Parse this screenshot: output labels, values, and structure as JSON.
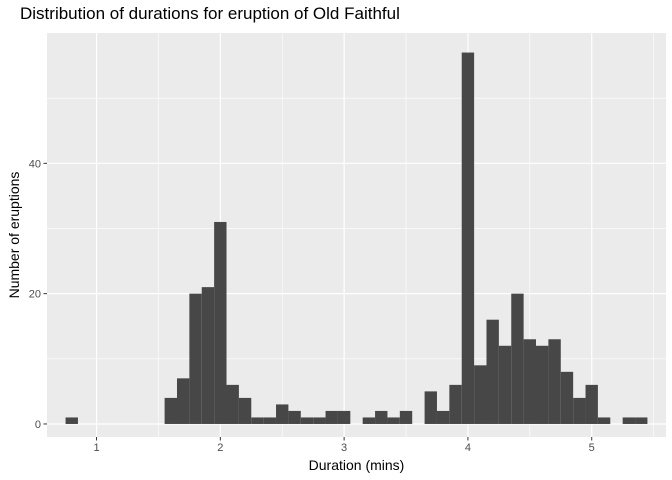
{
  "chart_data": {
    "type": "bar",
    "title": "Distribution of durations for eruption of Old Faithful",
    "xlabel": "Duration (mins)",
    "ylabel": "Number of eruptions",
    "xlim": [
      0.6,
      5.6
    ],
    "ylim": [
      -2,
      60
    ],
    "x_ticks": [
      1,
      2,
      3,
      4,
      5
    ],
    "y_ticks": [
      0,
      20,
      40
    ],
    "bin_width": 0.1,
    "bin_starts": [
      0.75,
      0.85,
      0.95,
      1.05,
      1.15,
      1.25,
      1.35,
      1.45,
      1.55,
      1.65,
      1.75,
      1.85,
      1.95,
      2.05,
      2.15,
      2.25,
      2.35,
      2.45,
      2.55,
      2.65,
      2.75,
      2.85,
      2.95,
      3.05,
      3.15,
      3.25,
      3.35,
      3.45,
      3.55,
      3.65,
      3.75,
      3.85,
      3.95,
      4.05,
      4.15,
      4.25,
      4.35,
      4.45,
      4.55,
      4.65,
      4.75,
      4.85,
      4.95,
      5.05,
      5.15,
      5.25,
      5.35
    ],
    "counts": [
      1,
      0,
      0,
      0,
      0,
      0,
      0,
      0,
      4,
      7,
      20,
      21,
      31,
      6,
      4,
      1,
      1,
      3,
      2,
      1,
      1,
      2,
      2,
      0,
      1,
      2,
      1,
      2,
      0,
      5,
      2,
      6,
      57,
      9,
      16,
      12,
      20,
      13,
      12,
      13,
      8,
      4,
      6,
      1,
      0,
      1,
      1
    ],
    "grid": true
  }
}
